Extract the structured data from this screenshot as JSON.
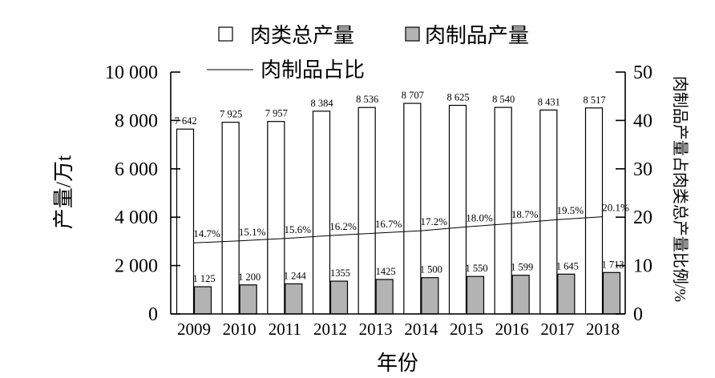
{
  "chart_data": {
    "type": "bar",
    "categories": [
      "2009",
      "2010",
      "2011",
      "2012",
      "2013",
      "2014",
      "2015",
      "2016",
      "2017",
      "2018"
    ],
    "xlabel": "年份",
    "ylabel": "产量/万t",
    "y2label": "肉制品产量占肉类总产量比例/%",
    "ylim": [
      0,
      10000
    ],
    "y2lim": [
      0,
      50
    ],
    "yticks": [
      0,
      2000,
      4000,
      6000,
      8000,
      10000
    ],
    "ytick_labels": [
      "0",
      "2 000",
      "4 000",
      "6 000",
      "8 000",
      "10 000"
    ],
    "y2ticks": [
      0,
      10,
      20,
      30,
      40,
      50
    ],
    "y2tick_labels": [
      "0",
      "10",
      "20",
      "30",
      "40",
      "50"
    ],
    "grid": false,
    "legend_position": "top-center",
    "series": [
      {
        "name": "肉类总产量",
        "kind": "bar",
        "axis": "left",
        "color": "#ffffff",
        "values": [
          7642,
          7925,
          7957,
          8384,
          8536,
          8707,
          8625,
          8540,
          8431,
          8517
        ],
        "value_labels": [
          "7 642",
          "7 925",
          "7 957",
          "8 384",
          "8 536",
          "8 707",
          "8 625",
          "8 540",
          "8 431",
          "8 517"
        ]
      },
      {
        "name": "肉制品产量",
        "kind": "bar",
        "axis": "left",
        "color": "#b3b3b3",
        "values": [
          1125,
          1200,
          1244,
          1355,
          1425,
          1500,
          1550,
          1599,
          1645,
          1713
        ],
        "value_labels": [
          "1 125",
          "1 200",
          "1 244",
          "1355",
          "1425",
          "1 500",
          "1 550",
          "1 599",
          "1 645",
          "1 713"
        ]
      },
      {
        "name": "肉制品占比",
        "kind": "line",
        "axis": "right",
        "color": "#000000",
        "values": [
          14.7,
          15.1,
          15.6,
          16.2,
          16.7,
          17.2,
          18.0,
          18.7,
          19.5,
          20.1
        ],
        "value_labels": [
          "14.7%",
          "15.1%",
          "15.6%",
          "16.2%",
          "16.7%",
          "17.2%",
          "18.0%",
          "18.7%",
          "19.5%",
          "20.1%"
        ]
      }
    ]
  }
}
